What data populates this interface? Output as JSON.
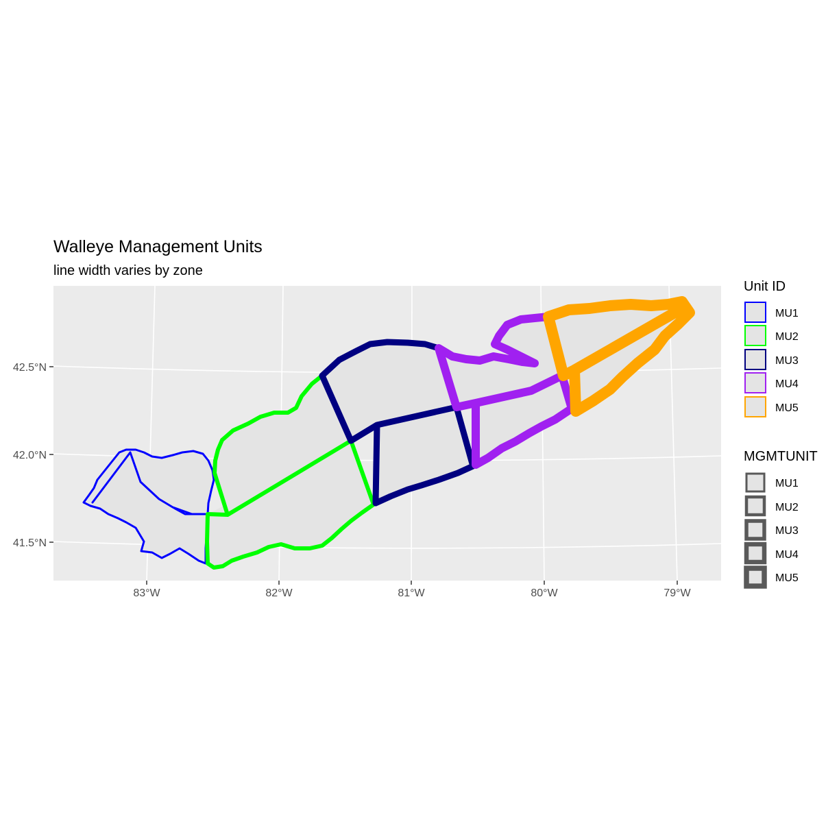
{
  "title": "Walleye Management Units",
  "subtitle": "line width varies by zone",
  "axes": {
    "x_ticks": [
      "83°W",
      "82°W",
      "81°W",
      "80°W",
      "79°W"
    ],
    "y_ticks": [
      "42.5°N",
      "42.0°N",
      "41.5°N"
    ]
  },
  "legend_color": {
    "title": "Unit ID",
    "items": [
      {
        "label": "MU1",
        "color": "#0000ff"
      },
      {
        "label": "MU2",
        "color": "#00ff00"
      },
      {
        "label": "MU3",
        "color": "#000080"
      },
      {
        "label": "MU4",
        "color": "#a020f0"
      },
      {
        "label": "MU5",
        "color": "#ffa500"
      }
    ]
  },
  "legend_width": {
    "title": "MGMTUNIT",
    "items": [
      {
        "label": "MU1"
      },
      {
        "label": "MU2"
      },
      {
        "label": "MU3"
      },
      {
        "label": "MU4"
      },
      {
        "label": "MU5"
      }
    ]
  },
  "chart_data": {
    "type": "map",
    "title": "Walleye Management Units",
    "subtitle": "line width varies by zone",
    "x_range_deg": [
      -83.7,
      -78.7
    ],
    "y_range_deg": [
      41.3,
      42.95
    ],
    "grid": true,
    "legend_position": "right",
    "units": [
      {
        "id": "MU1",
        "color": "#0000ff",
        "line_width_level": 1
      },
      {
        "id": "MU2",
        "color": "#00ff00",
        "line_width_level": 2
      },
      {
        "id": "MU3",
        "color": "#000080",
        "line_width_level": 3
      },
      {
        "id": "MU4",
        "color": "#a020f0",
        "line_width_level": 4
      },
      {
        "id": "MU5",
        "color": "#ffa500",
        "line_width_level": 5
      }
    ]
  }
}
